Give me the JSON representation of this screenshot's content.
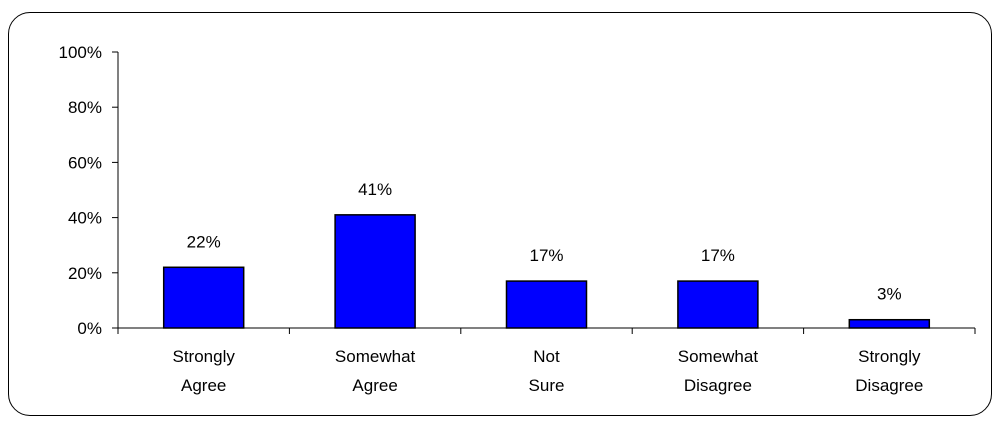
{
  "chart_data": {
    "type": "bar",
    "title": "",
    "xlabel": "",
    "ylabel": "",
    "categories": [
      [
        "Strongly",
        "Agree"
      ],
      [
        "Somewhat",
        "Agree"
      ],
      [
        "Not",
        "Sure"
      ],
      [
        "Somewhat",
        "Disagree"
      ],
      [
        "Strongly",
        "Disagree"
      ]
    ],
    "values": [
      22,
      41,
      17,
      17,
      3
    ],
    "data_labels": [
      "22%",
      "41%",
      "17%",
      "17%",
      "3%"
    ],
    "ylim": [
      0,
      100
    ],
    "yticks": [
      0,
      20,
      40,
      60,
      80,
      100
    ],
    "ytick_labels": [
      "0%",
      "20%",
      "40%",
      "60%",
      "80%",
      "100%"
    ],
    "grid": false,
    "legend": "none",
    "colors": {
      "bar_fill": "#0000ff",
      "bar_stroke": "#000000",
      "axis": "#000000"
    }
  }
}
